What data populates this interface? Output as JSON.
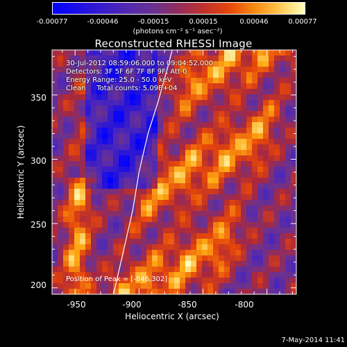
{
  "colorbar": {
    "ticks": [
      "-0.00077",
      "-0.00046",
      "-0.00015",
      "0.00015",
      "0.00046",
      "0.00077"
    ],
    "unit": "(photons cm⁻² s⁻¹ asec⁻²)"
  },
  "info": {
    "line1": "30-Jul-2012 08:59:06.000 to 09:04:52.000",
    "line2": "Detectors: 3F 5F 6F 7F 8F 9F, Att 0",
    "line3": "Energy Range: 25.0 - 50.0 keV",
    "line4": "Clean     Total counts: 5.09E+04",
    "peak": "Position of Peak = [-846,302]"
  },
  "footer": "7-May-2014 11:41",
  "chart_data": {
    "type": "heatmap",
    "title": "Reconstructed RHESSI Image",
    "xlabel": "Heliocentric X (arcsec)",
    "ylabel": "Heliocentric Y (arcsec)",
    "xlim": [
      -968,
      -777
    ],
    "ylim": [
      195,
      385
    ],
    "xticks": [
      -950,
      -900,
      -850,
      -800
    ],
    "yticks": [
      200,
      250,
      300,
      350
    ],
    "zlim": [
      -0.00077,
      0.00077
    ],
    "peak": [
      -846,
      302
    ],
    "limb_curve": [
      [
        -920,
        195
      ],
      [
        -913,
        225
      ],
      [
        -905,
        260
      ],
      [
        -900,
        290
      ],
      [
        -893,
        320
      ],
      [
        -885,
        345
      ],
      [
        -878,
        370
      ],
      [
        -874,
        385
      ]
    ]
  }
}
